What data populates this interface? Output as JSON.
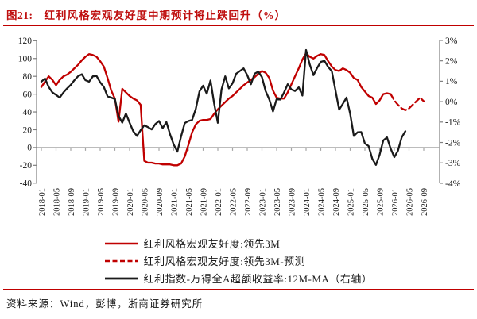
{
  "header": {
    "figure_label": "图21:",
    "title": "红利风格宏观友好度中期预计将止跌回升（%）"
  },
  "footer": {
    "source": "资料来源：Wind，彭博，浙商证券研究所"
  },
  "colors": {
    "accent_red": "#c00000",
    "line_red": "#c00000",
    "line_black": "#1a1a1a",
    "zero_line": "#a6a6a6",
    "axis_gray": "#7f7f7f"
  },
  "legend": [
    {
      "label": "红利风格宏观友好度:领先3M",
      "color": "#c00000",
      "style": "solid"
    },
    {
      "label": "红利风格宏观友好度:领先3M-预测",
      "color": "#c00000",
      "style": "dashed"
    },
    {
      "label": "红利指数-万得全A超额收益率:12M-MA（右轴）",
      "color": "#1a1a1a",
      "style": "solid"
    }
  ],
  "chart_data": {
    "type": "line",
    "title": "红利风格宏观友好度中期预计将止跌回升（%）",
    "x_start": "2018-01",
    "x_frequency": "monthly",
    "months_per_tick": 4,
    "x_tick_labels": [
      "2018-01",
      "2018-05",
      "2018-09",
      "2019-01",
      "2019-05",
      "2019-09",
      "2020-01",
      "2020-05",
      "2020-09",
      "2021-01",
      "2021-05",
      "2021-09",
      "2022-01",
      "2022-05",
      "2022-09",
      "2023-01",
      "2023-05",
      "2023-09",
      "2024-01",
      "2024-05",
      "2024-09",
      "2025-01",
      "2025-05",
      "2025-09",
      "2026-01",
      "2026-05",
      "2026-09"
    ],
    "left_axis": {
      "min": -40,
      "max": 120,
      "ticks": [
        120,
        100,
        80,
        60,
        40,
        20,
        0,
        -20,
        -40
      ]
    },
    "right_axis": {
      "min": -4,
      "max": 3,
      "ticks": [
        "3%",
        "2%",
        "1%",
        "0%",
        "-1%",
        "-2%",
        "-3%",
        "-4%"
      ],
      "tick_values": [
        3,
        2,
        1,
        0,
        -1,
        -2,
        -3,
        -4
      ]
    },
    "grid": "zero-line-only",
    "legend_position": "bottom",
    "series": [
      {
        "name": "红利风格宏观友好度:领先3M",
        "axis": "left",
        "color": "#c00000",
        "style": "solid",
        "start_index": 0,
        "values": [
          68,
          74,
          80,
          76,
          70,
          76,
          80,
          82,
          85,
          89,
          93,
          98,
          102,
          105,
          104,
          102,
          97,
          91,
          78,
          64,
          55,
          29,
          66,
          62,
          58,
          55,
          53,
          48,
          -15,
          -17,
          -17,
          -18,
          -18,
          -19,
          -19,
          -19,
          -20,
          -20,
          -18,
          -10,
          3,
          17,
          26,
          30,
          31,
          31,
          32,
          38,
          43,
          47,
          51,
          55,
          58,
          62,
          66,
          70,
          73,
          76,
          79,
          83,
          86,
          84,
          78,
          64,
          56,
          55,
          55,
          62,
          71,
          80,
          89,
          99,
          106,
          102,
          100,
          103,
          105,
          104,
          97,
          91,
          87,
          86,
          89,
          87,
          84,
          78,
          76,
          68,
          63,
          58,
          56,
          49,
          53,
          60,
          61,
          60
        ]
      },
      {
        "name": "红利风格宏观友好度:领先3M-预测",
        "axis": "left",
        "color": "#c00000",
        "style": "dashed",
        "start_index": 95,
        "values": [
          60,
          53,
          48,
          44,
          42,
          44,
          48,
          52,
          56,
          52
        ]
      },
      {
        "name": "红利指数-万得全A超额收益率:12M-MA（右轴）",
        "axis": "right",
        "color": "#1a1a1a",
        "style": "solid",
        "start_index": 0,
        "values": [
          0.98,
          1.13,
          0.72,
          0.45,
          0.33,
          0.2,
          0.45,
          0.65,
          0.82,
          1.05,
          1.25,
          1.34,
          1.05,
          0.98,
          1.24,
          1.26,
          0.95,
          0.72,
          0.26,
          0.2,
          0.13,
          -0.7,
          -1.03,
          -0.58,
          -1.03,
          -1.45,
          -1.68,
          -1.4,
          -1.16,
          -1.25,
          -1.36,
          -1.1,
          -0.95,
          -1.3,
          -1.0,
          -1.6,
          -2.1,
          -2.45,
          -1.7,
          -1.05,
          -0.95,
          -0.9,
          -0.35,
          0.5,
          0.78,
          0.39,
          1.04,
          -0.1,
          -1.04,
          0.59,
          1.24,
          0.65,
          0.9,
          1.37,
          1.5,
          1.63,
          1.3,
          0.85,
          1.37,
          1.47,
          1.2,
          0.52,
          0.1,
          -0.48,
          0.13,
          0.1,
          0.45,
          0.85,
          0.6,
          0.52,
          0.7,
          0.3,
          2.53,
          1.82,
          1.3,
          1.65,
          1.95,
          2.0,
          1.7,
          1.49,
          0.55,
          -0.39,
          -0.1,
          0.2,
          -0.6,
          -1.68,
          -1.5,
          -1.49,
          -2.05,
          -2.17,
          -2.8,
          -3.1,
          -2.6,
          -1.9,
          -1.75,
          -2.3,
          -2.72,
          -2.4,
          -1.75,
          -1.45
        ]
      }
    ]
  }
}
